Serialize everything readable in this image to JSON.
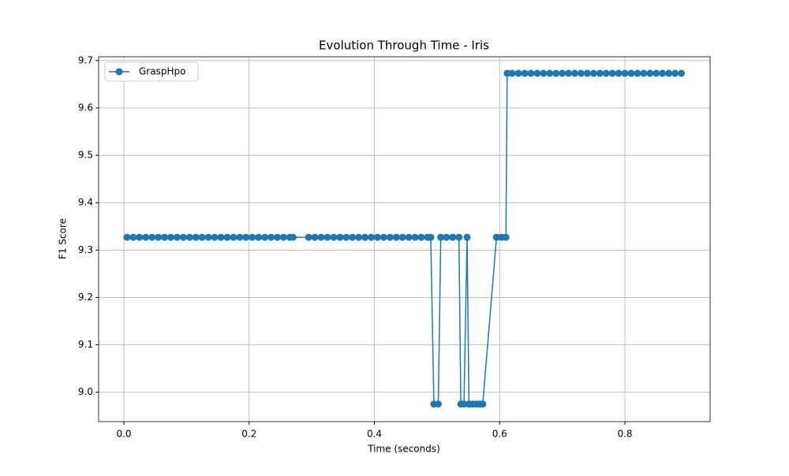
{
  "chart_data": {
    "type": "line",
    "title": "Evolution Through Time - Iris",
    "x_label": "Time (seconds)",
    "y_label": "F1 Score",
    "x": [
      0.005,
      0.015,
      0.025,
      0.035,
      0.045,
      0.055,
      0.065,
      0.075,
      0.085,
      0.095,
      0.105,
      0.115,
      0.125,
      0.135,
      0.145,
      0.155,
      0.165,
      0.175,
      0.185,
      0.195,
      0.205,
      0.215,
      0.225,
      0.235,
      0.245,
      0.255,
      0.265,
      0.27,
      0.295,
      0.305,
      0.315,
      0.325,
      0.335,
      0.345,
      0.355,
      0.365,
      0.375,
      0.385,
      0.395,
      0.405,
      0.415,
      0.425,
      0.435,
      0.445,
      0.455,
      0.465,
      0.475,
      0.485,
      0.49,
      0.495,
      0.502,
      0.506,
      0.515,
      0.525,
      0.535,
      0.538,
      0.543,
      0.548,
      0.551,
      0.557,
      0.563,
      0.568,
      0.573,
      0.595,
      0.603,
      0.61,
      0.612,
      0.62,
      0.63,
      0.64,
      0.65,
      0.66,
      0.67,
      0.68,
      0.69,
      0.7,
      0.71,
      0.72,
      0.73,
      0.74,
      0.75,
      0.76,
      0.77,
      0.78,
      0.79,
      0.8,
      0.81,
      0.82,
      0.83,
      0.84,
      0.85,
      0.86,
      0.87,
      0.88,
      0.89
    ],
    "series": [
      {
        "name": "GraspHpo",
        "color": "#1f77b4",
        "values": [
          9.327,
          9.327,
          9.327,
          9.327,
          9.327,
          9.327,
          9.327,
          9.327,
          9.327,
          9.327,
          9.327,
          9.327,
          9.327,
          9.327,
          9.327,
          9.327,
          9.327,
          9.327,
          9.327,
          9.327,
          9.327,
          9.327,
          9.327,
          9.327,
          9.327,
          9.327,
          9.327,
          9.327,
          9.327,
          9.327,
          9.327,
          9.327,
          9.327,
          9.327,
          9.327,
          9.327,
          9.327,
          9.327,
          9.327,
          9.327,
          9.327,
          9.327,
          9.327,
          9.327,
          9.327,
          9.327,
          9.327,
          9.327,
          9.327,
          8.975,
          8.975,
          9.327,
          9.327,
          9.327,
          9.327,
          8.975,
          8.975,
          9.327,
          8.975,
          8.975,
          8.975,
          8.975,
          8.975,
          9.327,
          9.327,
          9.327,
          9.673,
          9.673,
          9.673,
          9.673,
          9.673,
          9.673,
          9.673,
          9.673,
          9.673,
          9.673,
          9.673,
          9.673,
          9.673,
          9.673,
          9.673,
          9.673,
          9.673,
          9.673,
          9.673,
          9.673,
          9.673,
          9.673,
          9.673,
          9.673,
          9.673,
          9.673,
          9.673,
          9.673,
          9.673
        ]
      }
    ],
    "xlim": [
      -0.0403,
      0.936
    ],
    "xticks": [
      {
        "value": 0,
        "label": "0.0"
      },
      0.2,
      0.4,
      0.6,
      0.8
    ],
    "ylim": [
      8.938,
      9.708
    ],
    "yticks": [
      {
        "value": 9,
        "label": "9.0"
      },
      9.1,
      9.2,
      9.3,
      9.4,
      9.5,
      9.6,
      9.7
    ],
    "grid": true,
    "legend": "upper-left"
  }
}
